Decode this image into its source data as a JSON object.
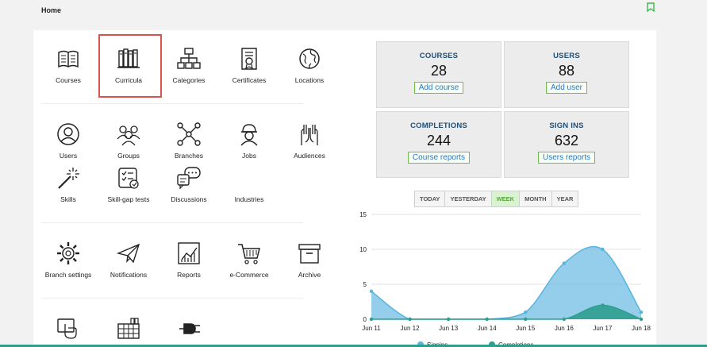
{
  "header": {
    "title": "Home"
  },
  "tiles": [
    {
      "label": "Courses",
      "icon": "book-icon"
    },
    {
      "label": "Curricula",
      "icon": "books-shelf-icon"
    },
    {
      "label": "Categories",
      "icon": "hierarchy-icon"
    },
    {
      "label": "Certificates",
      "icon": "certificate-icon"
    },
    {
      "label": "Locations",
      "icon": "globe-icon"
    },
    {
      "label": "Users",
      "icon": "user-icon"
    },
    {
      "label": "Groups",
      "icon": "group-icon"
    },
    {
      "label": "Branches",
      "icon": "branches-icon"
    },
    {
      "label": "Jobs",
      "icon": "worker-icon"
    },
    {
      "label": "Audiences",
      "icon": "raised-hands-icon"
    },
    {
      "label": "Skills",
      "icon": "magic-wand-icon"
    },
    {
      "label": "Skill-gap tests",
      "icon": "checklist-icon"
    },
    {
      "label": "Discussions",
      "icon": "chat-bubbles-icon"
    },
    {
      "label": "Industries",
      "icon": ""
    },
    {
      "label": "Branch settings",
      "icon": "gear-icon"
    },
    {
      "label": "Notifications",
      "icon": "paper-plane-icon"
    },
    {
      "label": "Reports",
      "icon": "chart-icon"
    },
    {
      "label": "e-Commerce",
      "icon": "cart-icon"
    },
    {
      "label": "Archive",
      "icon": "archive-box-icon"
    },
    {
      "label": "",
      "icon": "touch-icon"
    },
    {
      "label": "",
      "icon": "calendar-icon"
    },
    {
      "label": "",
      "icon": "plug-icon"
    }
  ],
  "stats": [
    {
      "title": "COURSES",
      "value": "28",
      "button": "Add course"
    },
    {
      "title": "USERS",
      "value": "88",
      "button": "Add user"
    },
    {
      "title": "COMPLETIONS",
      "value": "244",
      "button": "Course reports"
    },
    {
      "title": "SIGN INS",
      "value": "632",
      "button": "Users reports"
    }
  ],
  "range": {
    "options": [
      "TODAY",
      "YESTERDAY",
      "WEEK",
      "MONTH",
      "YEAR"
    ],
    "active": "WEEK"
  },
  "chart_data": {
    "type": "area",
    "x": [
      "Jun 11",
      "Jun 12",
      "Jun 13",
      "Jun 14",
      "Jun 15",
      "Jun 16",
      "Jun 17",
      "Jun 18"
    ],
    "ylim": [
      0,
      15
    ],
    "yticks": [
      0,
      5,
      10,
      15
    ],
    "grid": true,
    "legend": "bottom",
    "series": [
      {
        "name": "Signins",
        "values": [
          4,
          0,
          0,
          0,
          1,
          8,
          10,
          1
        ],
        "color": "#5ab4e0"
      },
      {
        "name": "Completions",
        "values": [
          0,
          0,
          0,
          0,
          0,
          0,
          2,
          0
        ],
        "color": "#2e9e8f"
      }
    ]
  }
}
